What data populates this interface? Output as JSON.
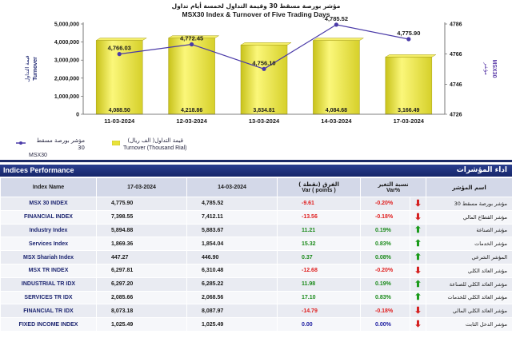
{
  "chart_data": {
    "type": "bar+line",
    "title_ar": "مؤشر بورصة مسقط 30 وقيمة التداول لخمسة أيام تداول",
    "title": "MSX30 Index & Turnover of Five Trading Days",
    "categories": [
      "11-03-2024",
      "12-03-2024",
      "13-03-2024",
      "14-03-2024",
      "17-03-2024"
    ],
    "series": [
      {
        "name": "Turnover (Thousand Rial)",
        "name_ar": "قيمة التداول( الف ريال)",
        "type": "bar",
        "axis": "left",
        "values": [
          4088.5,
          4218.86,
          3834.81,
          4084.68,
          3166.49
        ],
        "labels": [
          "4,088.50",
          "4,218.86",
          "3,834.81",
          "4,084.68",
          "3,166.49"
        ],
        "color": "#e8e23a"
      },
      {
        "name": "MSX30",
        "name_ar": "مؤشر بورصة مسقط 30",
        "type": "line",
        "axis": "right",
        "values": [
          4766.03,
          4772.45,
          4756.1,
          4785.52,
          4775.9
        ],
        "labels": [
          "4,766.03",
          "4,772.45",
          "4,756.10",
          "4,785.52",
          "4,775.90"
        ],
        "color": "#4a3aa8"
      }
    ],
    "y_left": {
      "label_ar": "قيمة التداول",
      "label": "Turnover",
      "ticks": [
        "0",
        "1,000,000",
        "2,000,000",
        "3,000,000",
        "4,000,000",
        "5,000,000"
      ],
      "range": [
        0,
        5000000
      ]
    },
    "y_right": {
      "label_ar": "مؤشر",
      "label": "MSX30",
      "ticks": [
        "4726",
        "4746",
        "4766",
        "4786"
      ],
      "range": [
        4726,
        4786
      ]
    },
    "grid": false,
    "legend": "bottom-left"
  },
  "table": {
    "title": "Indices Performance",
    "title_ar": "اداء المؤشرات",
    "headers": {
      "name": "Index Name",
      "d1": "17-03-2024",
      "d2": "14-03-2024",
      "var_ar": "الفرق (نقطة )",
      "var": "Var ( points )",
      "pct_ar": "نسبة التغير",
      "pct": "Var%",
      "name_ar": "اسم المؤشر"
    },
    "rows": [
      {
        "name": "MSX 30 INDEX",
        "d1": "4,775.90",
        "d2": "4,785.52",
        "var": "-9.61",
        "pct": "-0.20%",
        "dir": "down",
        "name_ar": "مؤشر بورصة مسقط 30"
      },
      {
        "name": "FINANCIAL INDEX",
        "d1": "7,398.55",
        "d2": "7,412.11",
        "var": "-13.56",
        "pct": "-0.18%",
        "dir": "down",
        "name_ar": "مؤشر القطاع المالي"
      },
      {
        "name": "Industry Index",
        "d1": "5,894.88",
        "d2": "5,883.67",
        "var": "11.21",
        "pct": "0.19%",
        "dir": "up",
        "name_ar": "مؤشر الصناعة"
      },
      {
        "name": "Services Index",
        "d1": "1,869.36",
        "d2": "1,854.04",
        "var": "15.32",
        "pct": "0.83%",
        "dir": "up",
        "name_ar": "مؤشر الخدمات"
      },
      {
        "name": "MSX Shariah Index",
        "d1": "447.27",
        "d2": "446.90",
        "var": "0.37",
        "pct": "0.08%",
        "dir": "up",
        "name_ar": "المؤشر الشرعي"
      },
      {
        "name": "MSX TR INDEX",
        "d1": "6,297.81",
        "d2": "6,310.48",
        "var": "-12.68",
        "pct": "-0.20%",
        "dir": "down",
        "name_ar": "مؤشر العائد الكلي"
      },
      {
        "name": "INDUSTRIAL TR IDX",
        "d1": "6,297.20",
        "d2": "6,285.22",
        "var": "11.98",
        "pct": "0.19%",
        "dir": "up",
        "name_ar": "مؤشر العائد الكلي للصناعة"
      },
      {
        "name": "SERVICES TR IDX",
        "d1": "2,085.66",
        "d2": "2,068.56",
        "var": "17.10",
        "pct": "0.83%",
        "dir": "up",
        "name_ar": "مؤشر العائد الكلي للخدمات"
      },
      {
        "name": "FINANCIAL TR IDX",
        "d1": "8,073.18",
        "d2": "8,087.97",
        "var": "-14.79",
        "pct": "-0.18%",
        "dir": "down",
        "name_ar": "مؤشر العائد الكلي المالي"
      },
      {
        "name": "FIXED INCOME INDEX",
        "d1": "1,025.49",
        "d2": "1,025.49",
        "var": "0.00",
        "pct": "0.00%",
        "dir": "flat",
        "name_ar": "مؤشر الدخل الثابت"
      }
    ]
  }
}
